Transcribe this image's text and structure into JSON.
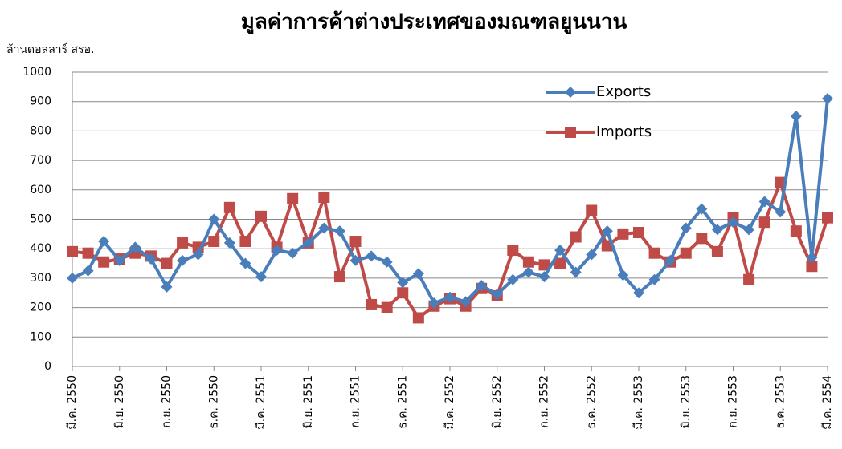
{
  "chart_data": {
    "type": "line",
    "title": "มูลค่าการค้าต่างประเทศของมณฑลยูนนาน",
    "y_label": "ล้านดอลลาร์ สรอ.",
    "categories": [
      "มี.ค. 2550",
      null,
      null,
      "มิ.ย. 2550",
      null,
      null,
      "ก.ย. 2550",
      null,
      null,
      "ธ.ค. 2550",
      null,
      null,
      "มี.ค. 2551",
      null,
      null,
      "มิ.ย. 2551",
      null,
      null,
      "ก.ย. 2551",
      null,
      null,
      "ธ.ค. 2551",
      null,
      null,
      "มี.ค. 2552",
      null,
      null,
      "มิ.ย. 2552",
      null,
      null,
      "ก.ย. 2552",
      null,
      null,
      "ธ.ค. 2552",
      null,
      null,
      "มี.ค. 2553",
      null,
      null,
      "มิ.ย. 2553",
      null,
      null,
      "ก.ย. 2553",
      null,
      null,
      "ธ.ค. 2553",
      null,
      null,
      "มี.ค. 2554"
    ],
    "series": [
      {
        "name": "Exports",
        "color": "#4a7ebb",
        "marker": "diamond",
        "values": [
          300,
          325,
          425,
          360,
          405,
          365,
          270,
          360,
          380,
          500,
          420,
          350,
          305,
          395,
          385,
          420,
          470,
          460,
          360,
          375,
          355,
          285,
          315,
          215,
          235,
          220,
          275,
          245,
          295,
          320,
          305,
          395,
          320,
          380,
          460,
          310,
          250,
          295,
          360,
          470,
          535,
          465,
          490,
          465,
          560,
          525,
          850,
          370,
          910
        ]
      },
      {
        "name": "Imports",
        "color": "#be4b48",
        "marker": "square",
        "values": [
          390,
          385,
          355,
          365,
          385,
          375,
          350,
          420,
          405,
          425,
          540,
          425,
          510,
          405,
          570,
          420,
          575,
          305,
          425,
          210,
          200,
          250,
          165,
          205,
          230,
          205,
          265,
          240,
          395,
          355,
          345,
          350,
          440,
          530,
          410,
          450,
          455,
          385,
          355,
          385,
          435,
          390,
          505,
          295,
          490,
          625,
          460,
          340,
          505
        ]
      }
    ],
    "ylim": [
      0,
      1000
    ],
    "yticks": [
      0,
      100,
      200,
      300,
      400,
      500,
      600,
      700,
      800,
      900,
      1000
    ],
    "grid": true,
    "legend": "upper right"
  }
}
